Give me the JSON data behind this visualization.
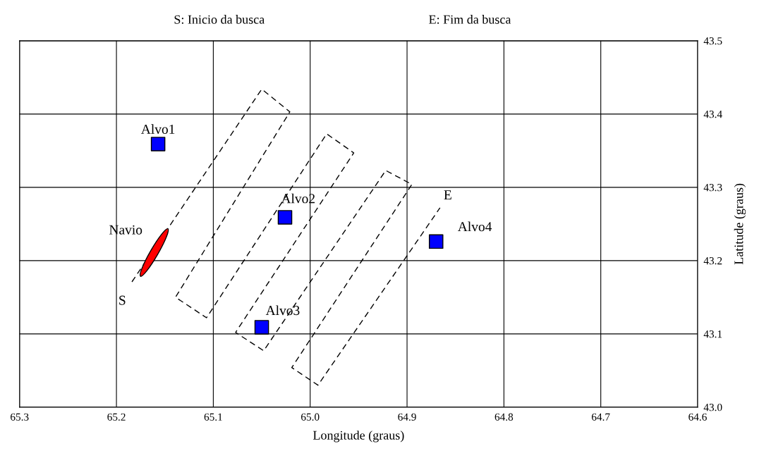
{
  "chart_data": {
    "type": "scatter",
    "xlabel": "Longitude (graus)",
    "ylabel": "Latitude (graus)",
    "xlim": [
      65.3,
      64.6
    ],
    "ylim": [
      43.0,
      43.5
    ],
    "xticks": [
      65.3,
      65.2,
      65.1,
      {
        "value": 65.0,
        "label": "65.0"
      },
      64.9,
      64.8,
      64.7,
      64.6
    ],
    "yticks": [
      {
        "value": 43.0,
        "label": "43.0"
      },
      43.1,
      43.2,
      43.3,
      43.4,
      43.5
    ],
    "grid": true,
    "series": [
      {
        "type": "line",
        "color": "#000000",
        "line_style": "dashed",
        "x": [
          65.184,
          65.05,
          65.021,
          65.139,
          65.107,
          64.983,
          64.955,
          65.077,
          65.048,
          64.922,
          64.895,
          65.019,
          64.992,
          64.866
        ],
        "values": [
          43.171,
          43.434,
          43.403,
          43.15,
          43.122,
          43.373,
          43.347,
          43.102,
          43.077,
          43.323,
          43.304,
          43.054,
          43.03,
          43.272
        ]
      },
      {
        "color": "#0000ff",
        "marker": "square",
        "x": [
          65.157,
          65.026,
          65.05,
          64.87
        ],
        "values": [
          43.359,
          43.259,
          43.109,
          43.226
        ]
      }
    ],
    "annotations": [
      "S: Inicio da busca",
      "E: Fim da busca",
      {
        "text": "Alvo1",
        "x": 65.157,
        "y": 43.359
      },
      {
        "text": "Alvo2",
        "x": 65.026,
        "y": 43.259
      },
      {
        "text": "Alvo3",
        "x": 65.05,
        "y": 43.109
      },
      {
        "text": "Alvo4",
        "x": 64.87,
        "y": 43.226
      },
      {
        "text": "Navio",
        "x": 65.161,
        "y": 43.211
      },
      {
        "text": "S",
        "x": 65.184,
        "y": 43.171
      },
      {
        "text": "E",
        "x": 64.866,
        "y": 43.272
      }
    ]
  }
}
